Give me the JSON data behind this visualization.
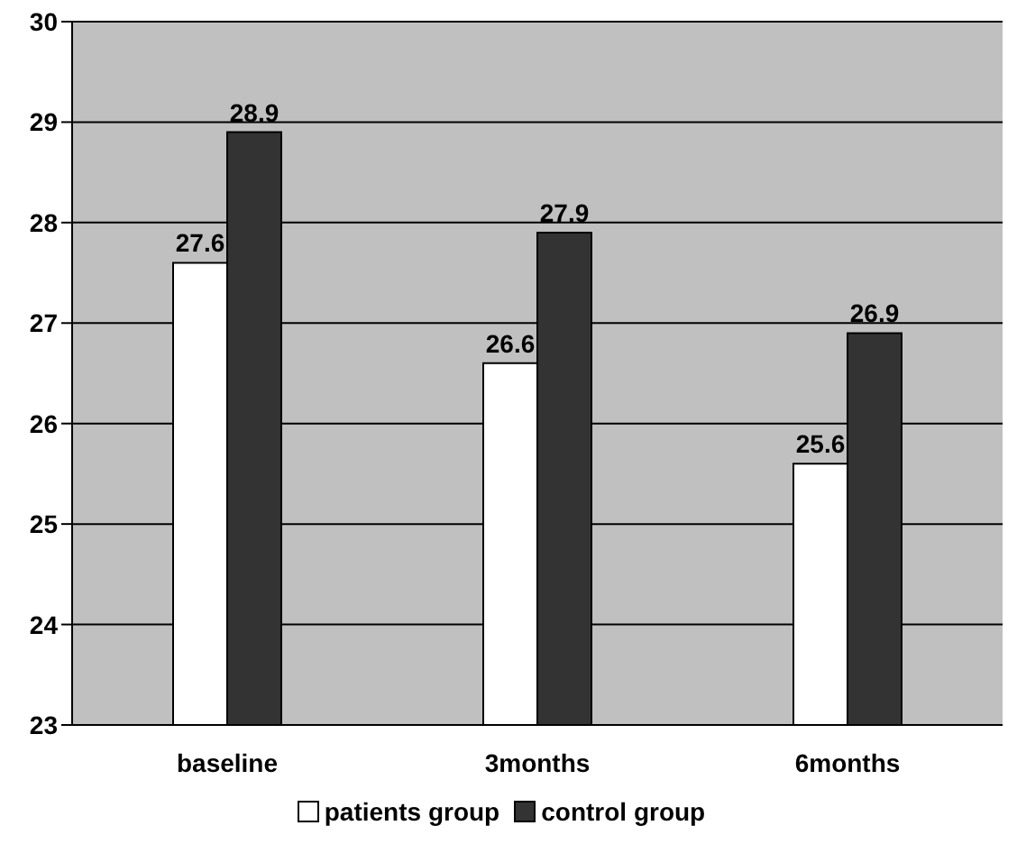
{
  "chart_data": {
    "type": "bar",
    "categories": [
      "baseline",
      "3months",
      "6months"
    ],
    "series": [
      {
        "name": "patients group",
        "color": "#ffffff",
        "values": [
          27.6,
          26.6,
          25.6
        ]
      },
      {
        "name": "control group",
        "color": "#333333",
        "values": [
          28.9,
          27.9,
          26.9
        ]
      }
    ],
    "ylim": [
      23,
      30
    ],
    "yticks": [
      23,
      24,
      25,
      26,
      27,
      28,
      29,
      30
    ],
    "grid": "y",
    "legend": "bottom",
    "data_labels": true
  }
}
